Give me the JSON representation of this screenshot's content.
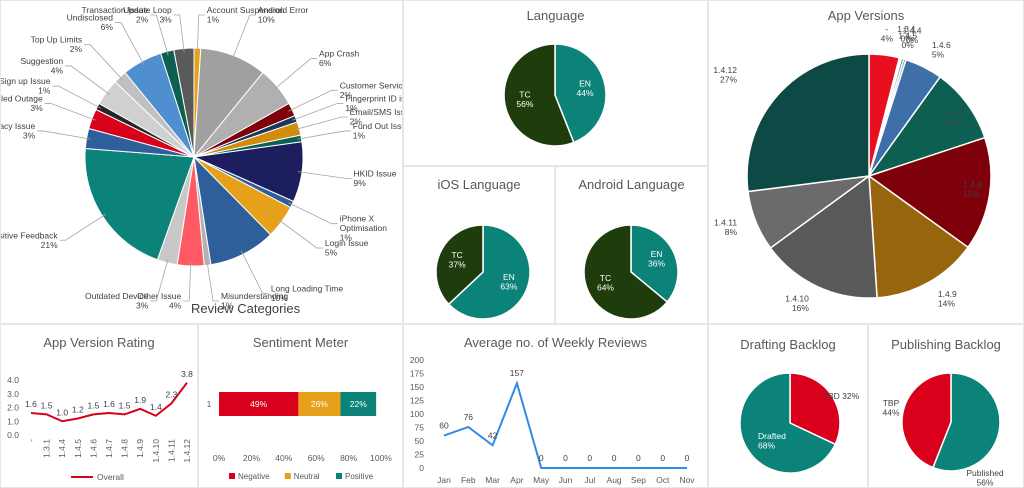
{
  "colors": {
    "teal": "#0b8379",
    "dark_green": "#1f3d0c",
    "red": "#d9001b",
    "dark_red": "#7d000b",
    "orange": "#e7a01a",
    "gold": "#98650f",
    "navy": "#1c1e5e",
    "steel_blue": "#2f5f9a",
    "dark_teal": "#0d5f52",
    "gray": "#808080",
    "dark_gray": "#505050",
    "light_gray": "#c8c8c8",
    "blue_line": "#2e8be6",
    "line_red": "#d9001b"
  },
  "chart_data": [
    {
      "id": "review_categories",
      "type": "pie",
      "title": "Review Categories",
      "categories": [
        "Account Suspension",
        "Android Error",
        "App Crash",
        "Customer Service",
        "Fingerprint ID issue",
        "Email/SMS Issue",
        "Fund Out Issue",
        "HKID Issue",
        "iPhone X Optimisation",
        "Login Issue",
        "Long Loading Time",
        "Misunderstanding",
        "Other Issue",
        "Outdated Device",
        "Positive Feedback",
        "Privacy Issue",
        "Scheduled Outage",
        "Sign up Issue",
        "Suggestion",
        "Top Up Limits",
        "Undisclosed",
        "Transaction Issue",
        "Update Loop"
      ],
      "labels": [
        "Account Suspension",
        "Android Error",
        "App Crash",
        "Customer Service",
        "Fingerprint ID issue",
        "Email/SMS Issue",
        "Fund Out Issue",
        "HKID Issue",
        "iPhone X\nOptimisation",
        "Login Issue",
        "Long Loading Time",
        "Misunderstanding",
        "Other Issue",
        "Outdated Device",
        "Positive Feedback",
        "Privacy Issue",
        "Scheduled Outage",
        "Sign up Issue",
        "Suggestion",
        "Top Up Limits",
        "Undisclosed",
        "Transaction Issue",
        "Update Loop"
      ],
      "values": [
        1,
        10,
        6,
        2,
        1,
        2,
        1,
        9,
        1,
        5,
        10,
        1,
        4,
        3,
        21,
        3,
        3,
        1,
        4,
        2,
        6,
        2,
        3
      ],
      "value_labels": [
        "1%",
        "10%",
        "6%",
        "2%",
        "1%",
        "2%",
        "1%",
        "9%",
        "1%",
        "5%",
        "10%",
        "1%",
        "4%",
        "3%",
        "21%",
        "3%",
        "3%",
        "1%",
        "4%",
        "2%",
        "6%",
        "2%",
        "3%"
      ],
      "colors": [
        "#e7a01a",
        "#a0a0a0",
        "#b0b0b0",
        "#7d000b",
        "#17375e",
        "#d08c0a",
        "#0d5f52",
        "#1c1e5e",
        "#2f5f9a",
        "#e7a01a",
        "#2f5f9a",
        "#b3b3b3",
        "#ff5a64",
        "#c8c8c8",
        "#0b8379",
        "#2f5f9a",
        "#d9001b",
        "#262626",
        "#d0d0d0",
        "#c0c0c0",
        "#4f8fd0",
        "#0d5f52",
        "#5a5a5a"
      ]
    },
    {
      "id": "language",
      "type": "pie",
      "title": "Language",
      "categories": [
        "EN",
        "TC"
      ],
      "values": [
        44,
        56
      ],
      "value_labels": [
        "44%",
        "56%"
      ],
      "colors": [
        "#0b8379",
        "#1f3d0c"
      ]
    },
    {
      "id": "ios_language",
      "type": "pie",
      "title": "iOS Language",
      "categories": [
        "EN",
        "TC"
      ],
      "values": [
        63,
        37
      ],
      "value_labels": [
        "63%",
        "37%"
      ],
      "colors": [
        "#0b8379",
        "#1f3d0c"
      ]
    },
    {
      "id": "android_language",
      "type": "pie",
      "title": "Android Language",
      "categories": [
        "EN",
        "TC"
      ],
      "values": [
        36,
        64
      ],
      "value_labels": [
        "36%",
        "64%"
      ],
      "colors": [
        "#0b8379",
        "#1f3d0c"
      ]
    },
    {
      "id": "app_versions",
      "type": "pie",
      "title": "App Versions",
      "categories": [
        "-",
        "1.3.1",
        "1.4.5",
        "1.4.4",
        "1.4.6",
        "1.4.7",
        "1.4.8",
        "1.4.9",
        "1.4.10",
        "1.4.11",
        "1.4.12"
      ],
      "values": [
        4,
        0.3,
        0.3,
        0.3,
        5,
        10,
        15,
        14,
        16,
        8,
        27
      ],
      "value_labels": [
        "4%",
        "0%",
        "0%",
        "0%",
        "5%",
        "10%",
        "15%",
        "14%",
        "16%",
        "8%",
        "27%"
      ],
      "colors": [
        "#e8101e",
        "#ffffff",
        "#0b8379",
        "#808080",
        "#3f6fa8",
        "#0d5f52",
        "#7d000b",
        "#98650f",
        "#595959",
        "#6b6b6b",
        "#0d4a46"
      ]
    },
    {
      "id": "app_version_rating",
      "type": "line",
      "title": "App Version Rating",
      "categories": [
        "-",
        "1.3.1",
        "1.4.4",
        "1.4.5",
        "1.4.6",
        "1.4.7",
        "1.4.8",
        "1.4.9",
        "1.4.10",
        "1.4.11",
        "1.4.12"
      ],
      "series": [
        {
          "name": "Overall",
          "values": [
            1.6,
            1.5,
            1.0,
            1.2,
            1.5,
            1.6,
            1.5,
            1.9,
            1.4,
            2.3,
            3.8
          ]
        }
      ],
      "value_labels": [
        "1.6",
        "1.5",
        "1.0",
        "1.2",
        "1.5",
        "1.6",
        "1.5",
        "1.9",
        "1.4",
        "2.3",
        "3.8"
      ],
      "yticks": [
        "0.0",
        "1.0",
        "2.0",
        "3.0",
        "4.0"
      ],
      "ylim": [
        0,
        4
      ]
    },
    {
      "id": "sentiment_meter",
      "type": "bar",
      "title": "Sentiment Meter",
      "categories": [
        "1"
      ],
      "series": [
        {
          "name": "Negative",
          "values": [
            49
          ],
          "label": "49%",
          "color": "#d9001b"
        },
        {
          "name": "Neutral",
          "values": [
            26
          ],
          "label": "26%",
          "color": "#e7a01a"
        },
        {
          "name": "Positive",
          "values": [
            22
          ],
          "label": "22%",
          "color": "#0b8379"
        }
      ],
      "xticks": [
        "0%",
        "20%",
        "40%",
        "60%",
        "80%",
        "100%"
      ],
      "xlim": [
        0,
        100
      ]
    },
    {
      "id": "weekly_reviews",
      "type": "line",
      "title": "Average no. of Weekly Reviews",
      "categories": [
        "Jan",
        "Feb",
        "Mar",
        "Apr",
        "May",
        "Jun",
        "Jul",
        "Aug",
        "Sep",
        "Oct",
        "Nov"
      ],
      "series": [
        {
          "name": "Reviews",
          "values": [
            60,
            76,
            42,
            157,
            0,
            0,
            0,
            0,
            0,
            0,
            0
          ]
        }
      ],
      "value_labels": [
        "60",
        "76",
        "42",
        "157",
        "0",
        "0",
        "0",
        "0",
        "0",
        "0",
        "0"
      ],
      "yticks": [
        "0",
        "25",
        "50",
        "75",
        "100",
        "125",
        "150",
        "175",
        "200"
      ],
      "ylim": [
        0,
        200
      ]
    },
    {
      "id": "drafting_backlog",
      "type": "pie",
      "title": "Drafting Backlog",
      "categories": [
        "TBD",
        "Drafted"
      ],
      "values": [
        32,
        68
      ],
      "value_labels": [
        "32%",
        "68%"
      ],
      "colors": [
        "#d9001b",
        "#0b8379"
      ]
    },
    {
      "id": "publishing_backlog",
      "type": "pie",
      "title": "Publishing Backlog",
      "categories": [
        "Published",
        "TBP"
      ],
      "values": [
        56,
        44
      ],
      "value_labels": [
        "56%",
        "44%"
      ],
      "colors": [
        "#0b8379",
        "#d9001b"
      ]
    }
  ]
}
